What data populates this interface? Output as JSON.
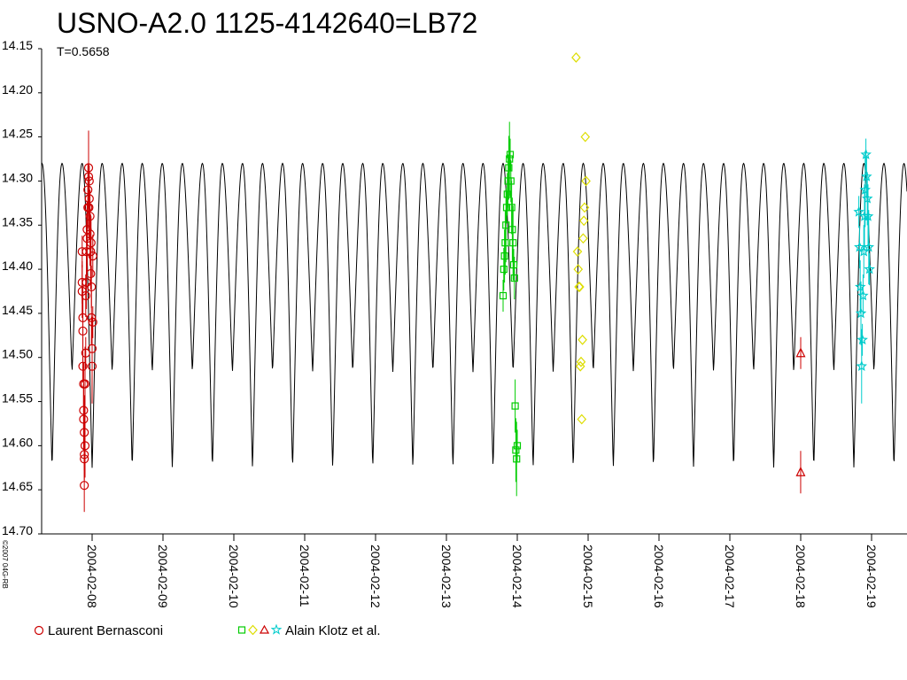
{
  "chart_data": {
    "type": "scatter",
    "title": "USNO-A2.0 1125-4142640=LB72",
    "subtitle": "T=0.5658",
    "copyright": "©2007 04G-RB",
    "yaxis": {
      "reversed": true,
      "ylim": [
        14.15,
        14.7
      ],
      "ticks": [
        "14.15",
        "14.20",
        "14.25",
        "14.30",
        "14.35",
        "14.40",
        "14.45",
        "14.50",
        "14.55",
        "14.60",
        "14.65",
        "14.70"
      ]
    },
    "xaxis": {
      "type": "date",
      "ticks": [
        "2004-02-08",
        "2004-02-09",
        "2004-02-10",
        "2004-02-11",
        "2004-02-12",
        "2004-02-13",
        "2004-02-14",
        "2004-02-15",
        "2004-02-16",
        "2004-02-17",
        "2004-02-18",
        "2004-02-19"
      ]
    },
    "model_curve": {
      "type": "line",
      "color": "#000000",
      "period_days": 0.5658,
      "min_mag": 14.28,
      "max_mag": 14.625
    },
    "series": [
      {
        "name": "Laurent Bernasconi",
        "marker": "circle",
        "color": "#cc0000",
        "points": [
          [
            "2004-02-07 20:38",
            14.38
          ],
          [
            "2004-02-07 20:38",
            14.415
          ],
          [
            "2004-02-07 20:38",
            14.425
          ],
          [
            "2004-02-07 20:52",
            14.455
          ],
          [
            "2004-02-07 20:52",
            14.47
          ],
          [
            "2004-02-07 20:52",
            14.51
          ],
          [
            "2004-02-07 21:07",
            14.53
          ],
          [
            "2004-02-07 21:07",
            14.56
          ],
          [
            "2004-02-07 21:07",
            14.57
          ],
          [
            "2004-02-07 21:21",
            14.585
          ],
          [
            "2004-02-07 21:21",
            14.61
          ],
          [
            "2004-02-07 21:21",
            14.615
          ],
          [
            "2004-02-07 21:21",
            14.645
          ],
          [
            "2004-02-07 21:36",
            14.6
          ],
          [
            "2004-02-07 21:36",
            14.53
          ],
          [
            "2004-02-07 21:50",
            14.495
          ],
          [
            "2004-02-07 21:50",
            14.43
          ],
          [
            "2004-02-07 22:05",
            14.415
          ],
          [
            "2004-02-07 22:05",
            14.38
          ],
          [
            "2004-02-07 22:19",
            14.365
          ],
          [
            "2004-02-07 22:19",
            14.355
          ],
          [
            "2004-02-07 22:34",
            14.33
          ],
          [
            "2004-02-07 22:34",
            14.31
          ],
          [
            "2004-02-07 22:48",
            14.295
          ],
          [
            "2004-02-07 22:48",
            14.285
          ],
          [
            "2004-02-07 23:02",
            14.3
          ],
          [
            "2004-02-07 23:02",
            14.32
          ],
          [
            "2004-02-07 23:17",
            14.34
          ],
          [
            "2004-02-07 23:17",
            14.36
          ],
          [
            "2004-02-07 23:31",
            14.38
          ],
          [
            "2004-02-07 23:31",
            14.405
          ],
          [
            "2004-02-07 23:46",
            14.42
          ],
          [
            "2004-02-07 23:46",
            14.455
          ],
          [
            "2004-02-08 00:00",
            14.49
          ],
          [
            "2004-02-08 00:00",
            14.51
          ],
          [
            "2004-02-08 00:14",
            14.46
          ],
          [
            "2004-02-08 00:14",
            14.385
          ],
          [
            "2004-02-07 23:38",
            14.37
          ],
          [
            "2004-02-07 22:55",
            14.33
          ]
        ]
      },
      {
        "name": "Alain Klotz et al.",
        "marker": "square",
        "color": "#00cc00",
        "points": [
          [
            "2004-02-13 19:12",
            14.43
          ],
          [
            "2004-02-13 19:26",
            14.4
          ],
          [
            "2004-02-13 19:41",
            14.385
          ],
          [
            "2004-02-13 19:55",
            14.37
          ],
          [
            "2004-02-13 20:10",
            14.35
          ],
          [
            "2004-02-13 20:24",
            14.33
          ],
          [
            "2004-02-13 20:38",
            14.315
          ],
          [
            "2004-02-13 20:53",
            14.3
          ],
          [
            "2004-02-13 21:07",
            14.285
          ],
          [
            "2004-02-13 21:22",
            14.275
          ],
          [
            "2004-02-13 21:36",
            14.27
          ],
          [
            "2004-02-13 21:50",
            14.3
          ],
          [
            "2004-02-13 22:05",
            14.33
          ],
          [
            "2004-02-13 22:19",
            14.355
          ],
          [
            "2004-02-13 22:34",
            14.37
          ],
          [
            "2004-02-13 22:48",
            14.395
          ],
          [
            "2004-02-13 23:02",
            14.41
          ],
          [
            "2004-02-13 23:17",
            14.555
          ],
          [
            "2004-02-13 23:31",
            14.605
          ],
          [
            "2004-02-13 23:46",
            14.615
          ],
          [
            "2004-02-14 00:00",
            14.6
          ]
        ]
      },
      {
        "name": "Alain Klotz et al.",
        "marker": "diamond",
        "color": "#dddd00",
        "points": [
          [
            "2004-02-14 19:55",
            14.16
          ],
          [
            "2004-02-14 20:24",
            14.38
          ],
          [
            "2004-02-14 20:38",
            14.4
          ],
          [
            "2004-02-14 20:53",
            14.42
          ],
          [
            "2004-02-14 21:07",
            14.42
          ],
          [
            "2004-02-14 21:22",
            14.51
          ],
          [
            "2004-02-14 21:36",
            14.505
          ],
          [
            "2004-02-14 21:50",
            14.57
          ],
          [
            "2004-02-14 22:05",
            14.48
          ],
          [
            "2004-02-14 22:19",
            14.365
          ],
          [
            "2004-02-14 22:34",
            14.345
          ],
          [
            "2004-02-14 22:48",
            14.33
          ],
          [
            "2004-02-14 23:02",
            14.25
          ],
          [
            "2004-02-14 23:17",
            14.3
          ]
        ]
      },
      {
        "name": "Alain Klotz et al.",
        "marker": "triangle",
        "color": "#cc0000",
        "points": [
          [
            "2004-02-18 00:00",
            14.495
          ],
          [
            "2004-02-17 23:59",
            14.63
          ]
        ]
      },
      {
        "name": "Alain Klotz et al.",
        "marker": "star",
        "color": "#00cccc",
        "points": [
          [
            "2004-02-18 19:41",
            14.335
          ],
          [
            "2004-02-18 19:55",
            14.375
          ],
          [
            "2004-02-18 20:10",
            14.42
          ],
          [
            "2004-02-18 20:24",
            14.45
          ],
          [
            "2004-02-18 20:38",
            14.51
          ],
          [
            "2004-02-18 20:53",
            14.48
          ],
          [
            "2004-02-18 21:07",
            14.43
          ],
          [
            "2004-02-18 21:22",
            14.38
          ],
          [
            "2004-02-18 21:36",
            14.34
          ],
          [
            "2004-02-18 21:50",
            14.31
          ],
          [
            "2004-02-18 22:05",
            14.27
          ],
          [
            "2004-02-18 22:19",
            14.295
          ],
          [
            "2004-02-18 22:34",
            14.32
          ],
          [
            "2004-02-18 22:48",
            14.34
          ],
          [
            "2004-02-18 23:02",
            14.375
          ],
          [
            "2004-02-18 23:17",
            14.4
          ]
        ]
      }
    ],
    "legend": {
      "placement": "bottom",
      "entries": [
        {
          "label": "Laurent Bernasconi",
          "markers": [
            "circle"
          ],
          "colors": [
            "#cc0000"
          ]
        },
        {
          "label": "Alain Klotz et al.",
          "markers": [
            "square",
            "diamond",
            "triangle",
            "star"
          ],
          "colors": [
            "#00cc00",
            "#dddd00",
            "#cc0000",
            "#00cccc"
          ]
        }
      ]
    }
  }
}
